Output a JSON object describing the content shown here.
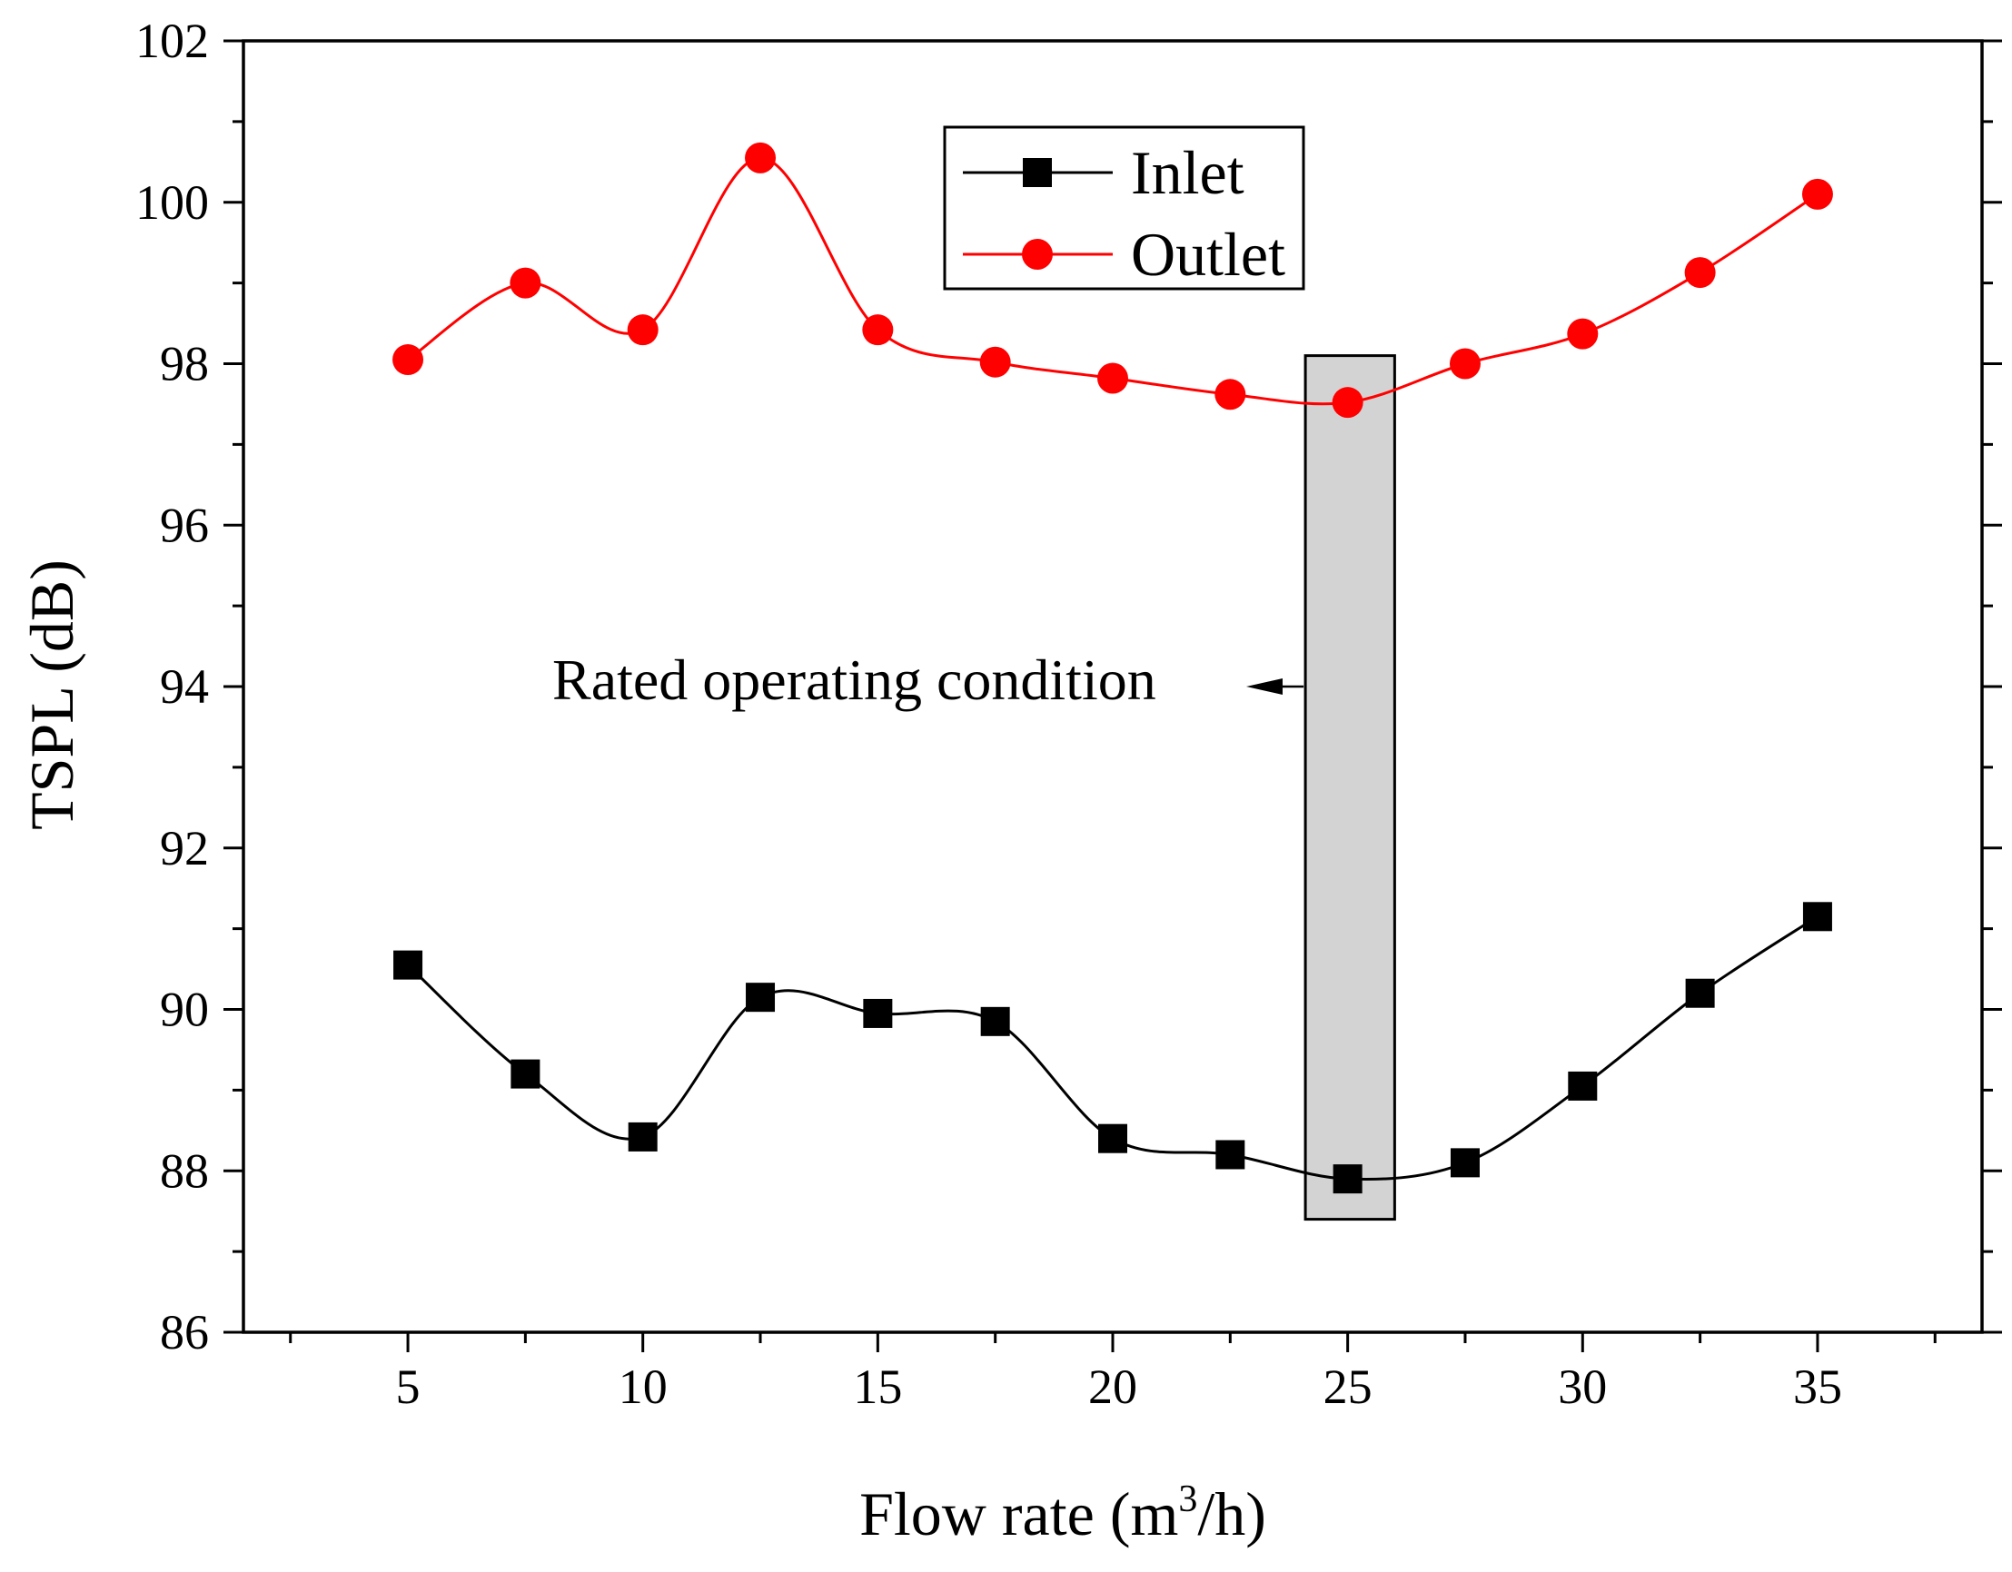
{
  "chart_data": {
    "type": "line",
    "title": "",
    "xlabel": {
      "prefix": "Flow rate (m",
      "sup": "3",
      "suffix": "/h)"
    },
    "ylabel": "TSPL (dB)",
    "xlim": [
      1.5,
      38.5
    ],
    "ylim": [
      86,
      102
    ],
    "xticks": [
      5,
      10,
      15,
      20,
      25,
      30,
      35
    ],
    "yticks": [
      86,
      88,
      90,
      92,
      94,
      96,
      98,
      100,
      102
    ],
    "x": [
      5,
      7.5,
      10,
      12.5,
      15,
      17.5,
      20,
      22.5,
      25,
      27.5,
      30,
      32.5,
      35
    ],
    "series": [
      {
        "name": "Inlet",
        "color": "#000000",
        "marker": "square",
        "values": [
          90.55,
          89.2,
          88.42,
          90.15,
          89.95,
          89.85,
          88.4,
          88.2,
          87.9,
          88.1,
          89.05,
          90.2,
          91.15
        ]
      },
      {
        "name": "Outlet",
        "color": "#ff0000",
        "marker": "circle",
        "values": [
          98.05,
          99.0,
          98.42,
          100.55,
          98.42,
          98.02,
          97.82,
          97.62,
          97.52,
          98.0,
          98.37,
          99.13,
          100.1
        ]
      }
    ],
    "legend": {
      "position": "top-center"
    },
    "highlight": {
      "x_range": [
        24.1,
        26.0
      ],
      "y_range": [
        87.4,
        98.1
      ],
      "fill": "#d3d3d3"
    },
    "annotation": {
      "text": "Rated operating condition",
      "arrow_to": "highlight-box"
    }
  }
}
